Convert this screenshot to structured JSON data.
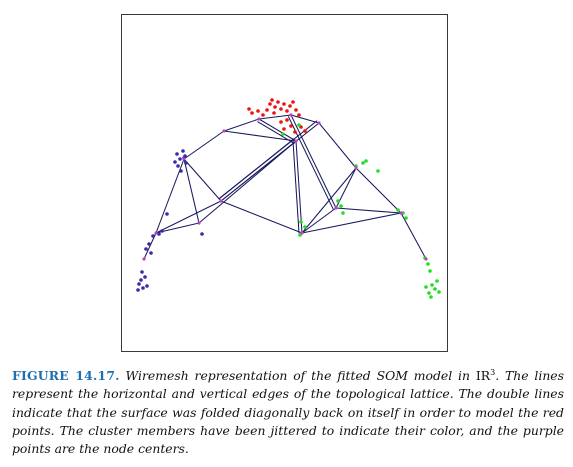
{
  "figure": {
    "colors": {
      "edge": "#1a1a5e",
      "node": "#c040c0",
      "red_cluster": "#ee1111",
      "blue_cluster": "#3a2aa6",
      "green_cluster": "#22dd22",
      "caption_label": "#1f6fb0",
      "frame": "#3a3a3a"
    }
  },
  "caption": {
    "label": "FIGURE 14.17.",
    "text_before_math": "Wiremesh representation of the fitted SOM model in",
    "math_base": "IR",
    "math_sup": "3",
    "text_after_math": ". The lines represent the horizontal and vertical edges of the topological lattice. The double lines indicate that the surface was folded diagonally back on itself in order to model the red points. The cluster members have been jittered to indicate their color, and the purple points are the node centers."
  }
}
